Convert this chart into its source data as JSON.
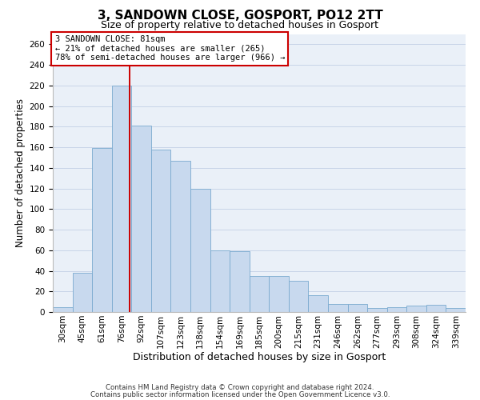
{
  "title": "3, SANDOWN CLOSE, GOSPORT, PO12 2TT",
  "subtitle": "Size of property relative to detached houses in Gosport",
  "xlabel": "Distribution of detached houses by size in Gosport",
  "ylabel": "Number of detached properties",
  "bar_labels": [
    "30sqm",
    "45sqm",
    "61sqm",
    "76sqm",
    "92sqm",
    "107sqm",
    "123sqm",
    "138sqm",
    "154sqm",
    "169sqm",
    "185sqm",
    "200sqm",
    "215sqm",
    "231sqm",
    "246sqm",
    "262sqm",
    "277sqm",
    "293sqm",
    "308sqm",
    "324sqm",
    "339sqm"
  ],
  "bar_values": [
    5,
    38,
    159,
    220,
    181,
    158,
    147,
    120,
    60,
    59,
    35,
    35,
    30,
    16,
    8,
    8,
    4,
    5,
    6,
    7,
    4
  ],
  "bar_color": "#c8d9ee",
  "bar_edgecolor": "#7aaacf",
  "vline_x": 81,
  "vline_color": "#cc0000",
  "bin_edges": [
    22.5,
    37.5,
    52.5,
    67.5,
    82.5,
    97.5,
    112.5,
    127.5,
    142.5,
    157.5,
    172.5,
    187.5,
    202.5,
    217.5,
    232.5,
    247.5,
    262.5,
    277.5,
    292.5,
    307.5,
    322.5,
    337.5
  ],
  "ylim": [
    0,
    270
  ],
  "yticks": [
    0,
    20,
    40,
    60,
    80,
    100,
    120,
    140,
    160,
    180,
    200,
    220,
    240,
    260
  ],
  "annotation_title": "3 SANDOWN CLOSE: 81sqm",
  "annotation_line1": "← 21% of detached houses are smaller (265)",
  "annotation_line2": "78% of semi-detached houses are larger (966) →",
  "annotation_box_color": "#ffffff",
  "annotation_box_edgecolor": "#cc0000",
  "footer1": "Contains HM Land Registry data © Crown copyright and database right 2024.",
  "footer2": "Contains public sector information licensed under the Open Government Licence v3.0.",
  "background_color": "#ffffff",
  "axes_facecolor": "#eaf0f8",
  "grid_color": "#c8d4e8",
  "title_fontsize": 11,
  "subtitle_fontsize": 9,
  "ylabel_fontsize": 8.5,
  "xlabel_fontsize": 9,
  "tick_fontsize": 7.5,
  "annotation_fontsize": 7.5,
  "footer_fontsize": 6.2
}
